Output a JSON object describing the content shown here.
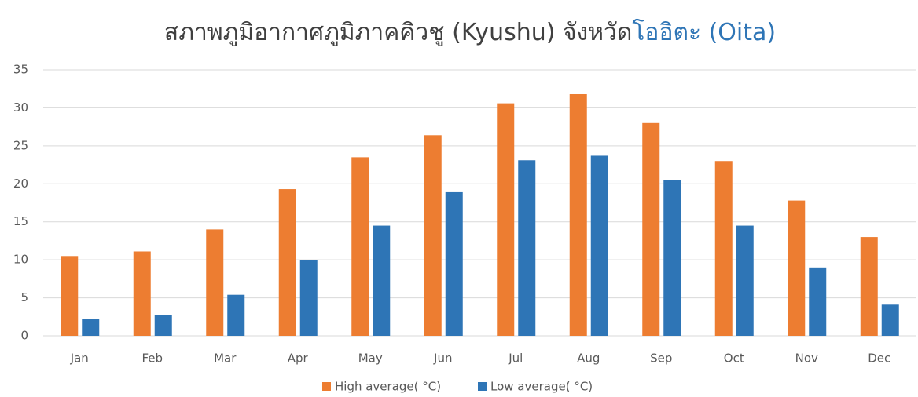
{
  "chart_data": {
    "type": "bar",
    "title": "สภาพภูมิอากาศภูมิภาคคิวชู (Kyushu) จังหวัด",
    "title_highlight": "โออิตะ (Oita)",
    "title_color": "#404040",
    "title_highlight_color": "#2e75b6",
    "categories": [
      "Jan",
      "Feb",
      "Mar",
      "Apr",
      "May",
      "Jun",
      "Jul",
      "Aug",
      "Sep",
      "Oct",
      "Nov",
      "Dec"
    ],
    "series": [
      {
        "name": "High average( °C)",
        "color": "#ed7d31",
        "values": [
          10.5,
          11.1,
          14,
          19.3,
          23.5,
          26.4,
          30.6,
          31.8,
          28,
          23,
          17.8,
          13
        ]
      },
      {
        "name": "Low average( °C)",
        "color": "#2e75b6",
        "values": [
          2.2,
          2.7,
          5.4,
          10,
          14.5,
          18.9,
          23.1,
          23.7,
          20.5,
          14.5,
          9,
          4.1
        ]
      }
    ],
    "ylim": [
      0,
      35
    ],
    "yticks": [
      0,
      5,
      10,
      15,
      20,
      25,
      30,
      35
    ],
    "grid": true,
    "legend": "bottom"
  }
}
